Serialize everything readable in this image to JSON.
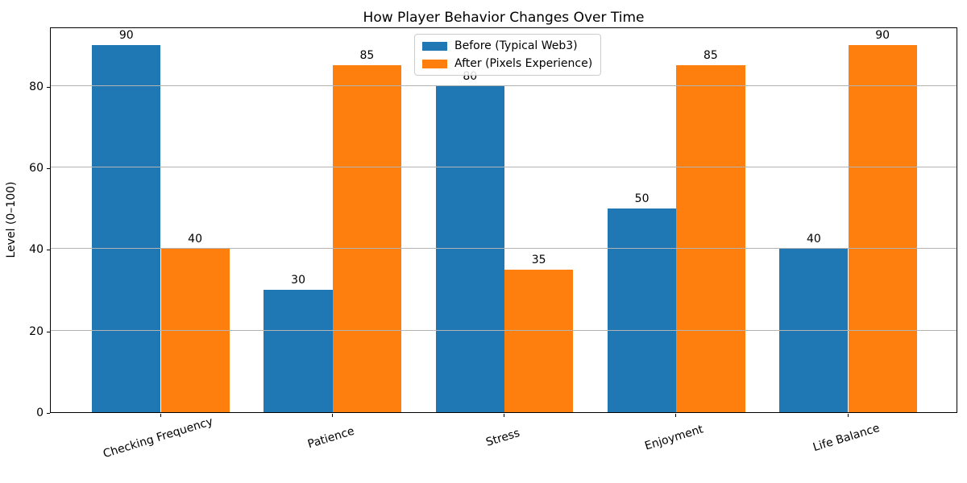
{
  "chart_data": {
    "type": "bar",
    "title": "How Player Behavior Changes Over Time",
    "xlabel": "",
    "ylabel": "Level (0–100)",
    "categories": [
      "Checking Frequency",
      "Patience",
      "Stress",
      "Enjoyment",
      "Life Balance"
    ],
    "series": [
      {
        "name": "Before (Typical Web3)",
        "color": "#1f77b4",
        "values": [
          90,
          30,
          80,
          50,
          40
        ]
      },
      {
        "name": "After (Pixels Experience)",
        "color": "#ff7f0e",
        "values": [
          40,
          85,
          35,
          85,
          90
        ]
      }
    ],
    "ylim": [
      0,
      94.5
    ],
    "yticks": [
      0,
      20,
      40,
      60,
      80
    ],
    "grid": true,
    "grid_color": "#b4b4b4",
    "grid_above_bars": true,
    "legend_position": "upper center",
    "bar_value_labels": true,
    "x_tick_rotation_deg": 17
  }
}
